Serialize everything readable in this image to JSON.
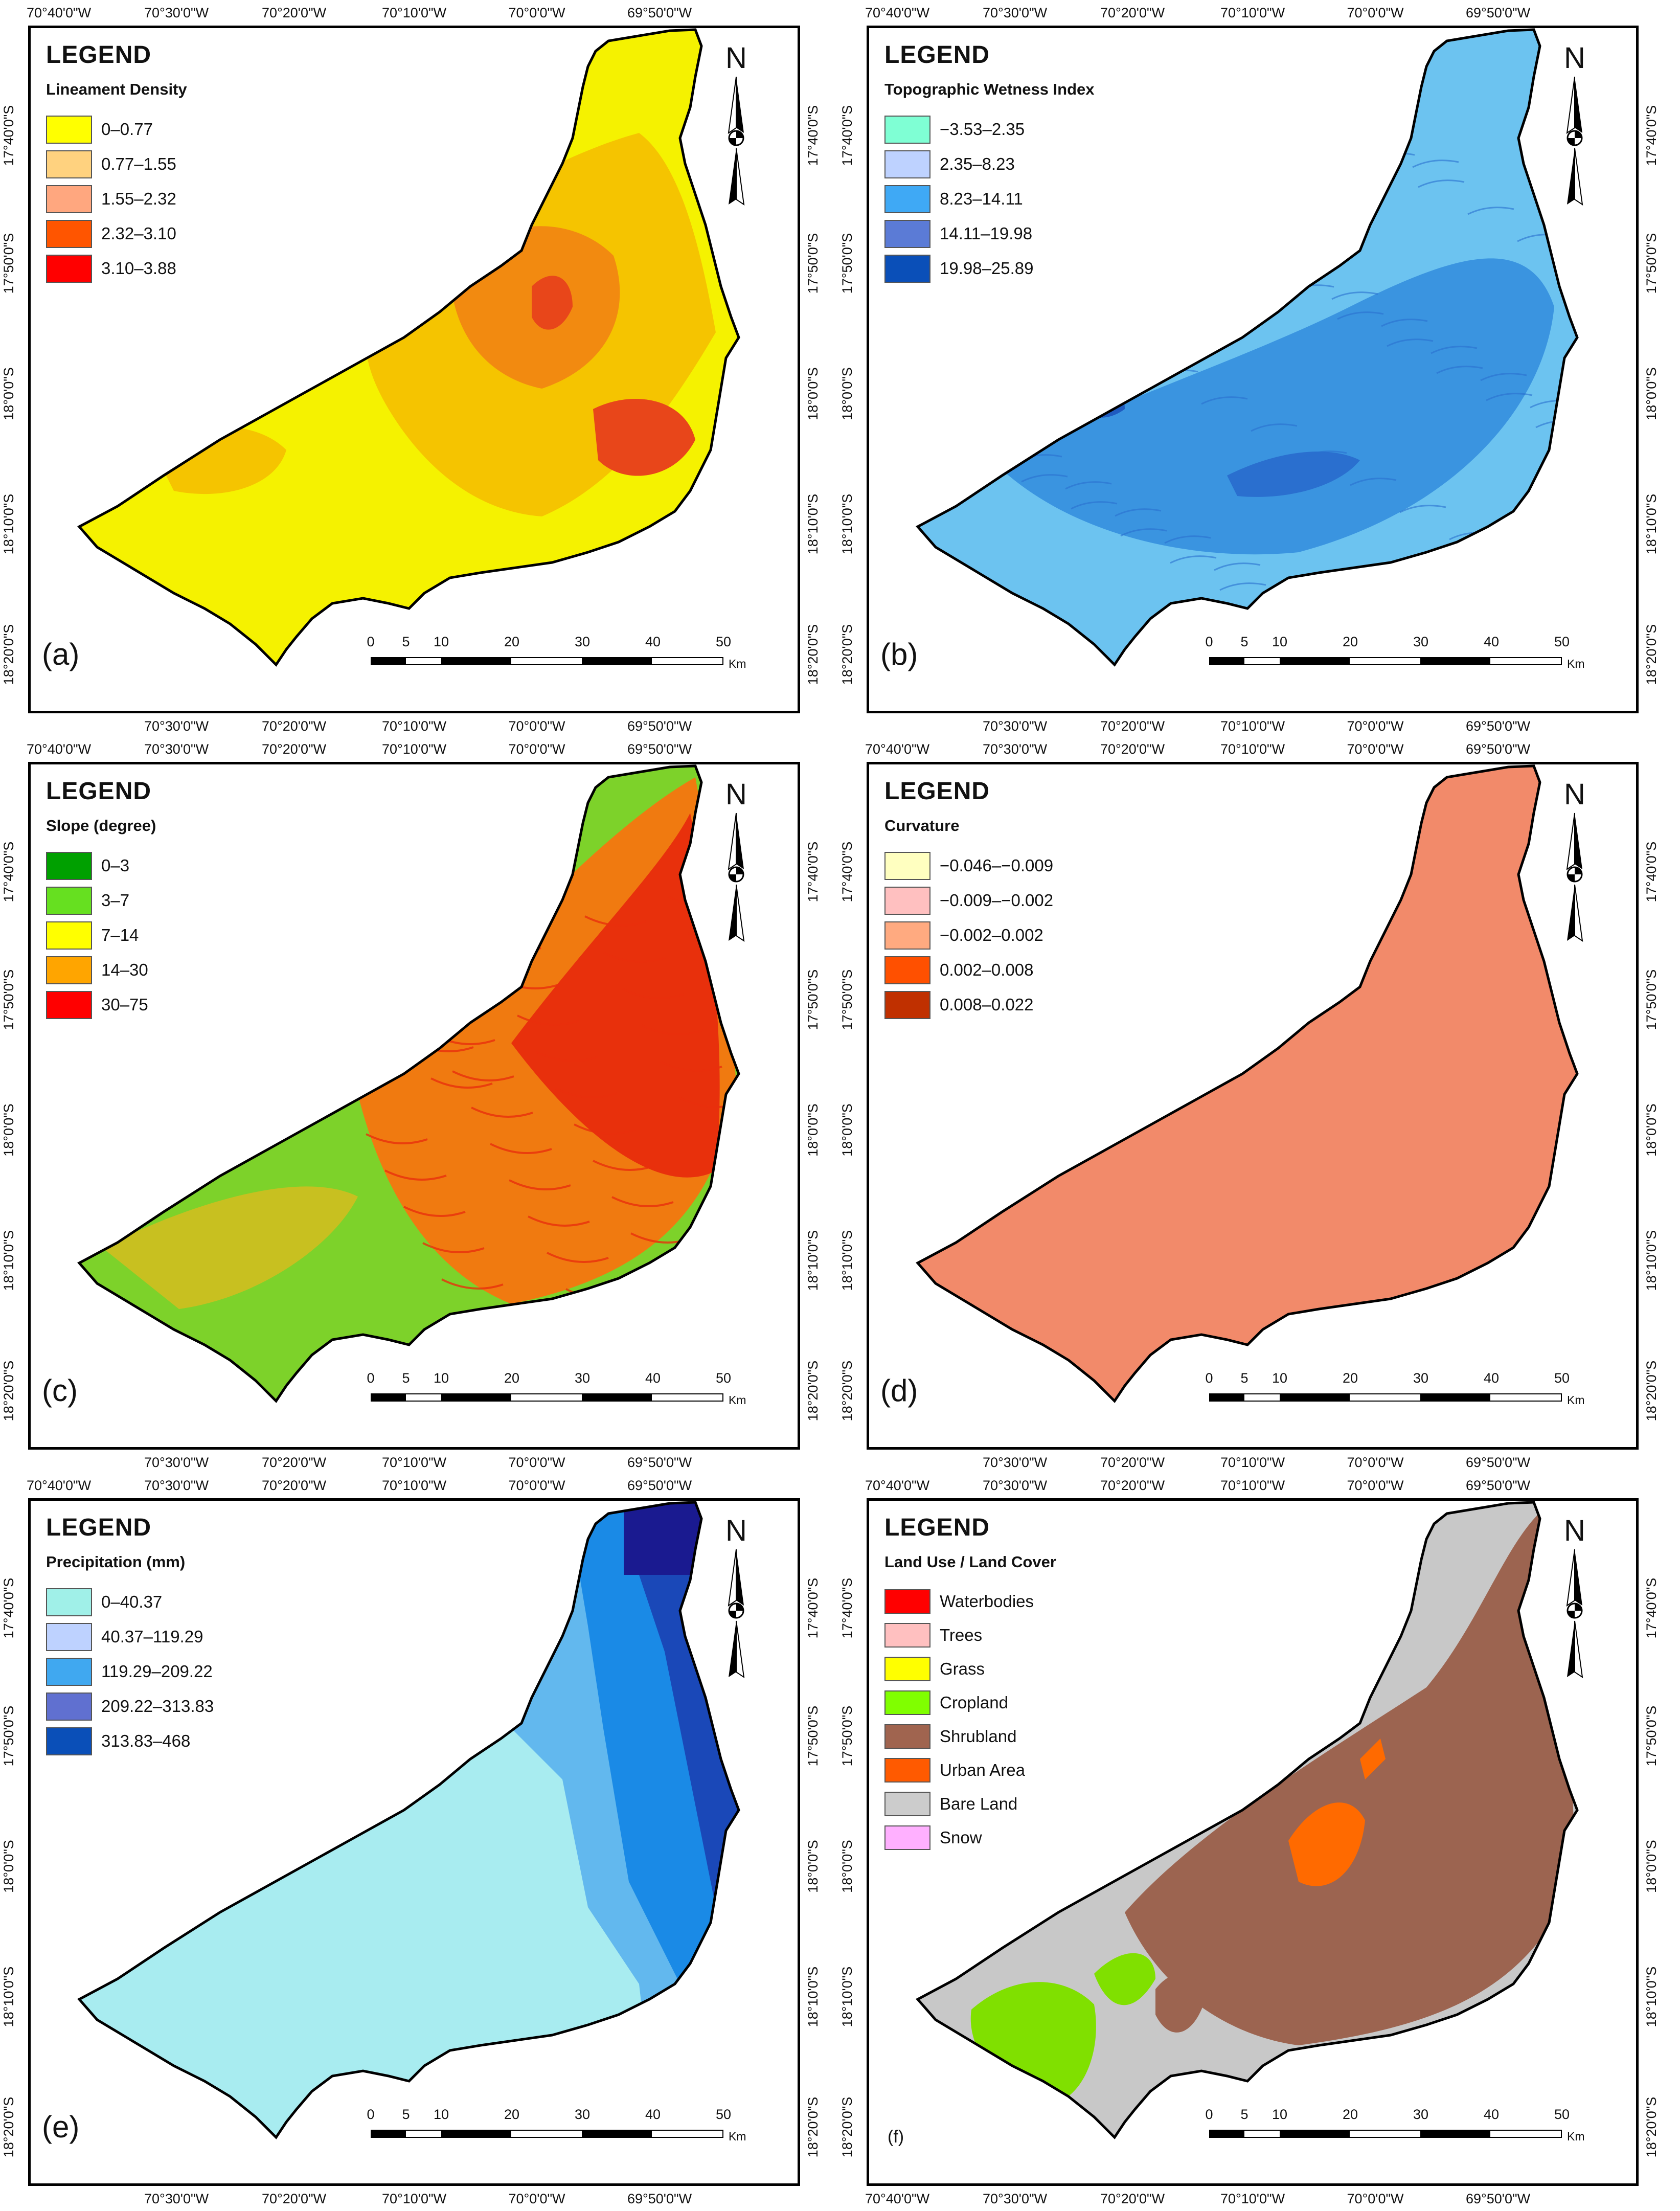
{
  "coords": {
    "top": [
      "70°40'0\"W",
      "70°30'0\"W",
      "70°20'0\"W",
      "70°10'0\"W",
      "70°0'0\"W",
      "69°50'0\"W"
    ],
    "bottom": [
      "70°30'0\"W",
      "70°20'0\"W",
      "70°10'0\"W",
      "70°0'0\"W",
      "69°50'0\"W"
    ],
    "bottom_f": [
      "70°40'0\"W",
      "70°30'0\"W",
      "70°20'0\"W",
      "70°10'0\"W",
      "70°0'0\"W",
      "69°50'0\"W"
    ],
    "left": [
      "17°40'0\"S",
      "17°50'0\"S",
      "18°0'0\"S",
      "18°10'0\"S",
      "18°20'0\"S"
    ],
    "right": [
      "17°40'0\"S",
      "17°50'0\"S",
      "18°0'0\"S",
      "18°10'0\"S",
      "18°20'0\"S"
    ]
  },
  "north_label": "N",
  "scale": {
    "ticks": [
      "0",
      "5",
      "10",
      "20",
      "30",
      "40",
      "50"
    ],
    "unit": "Km"
  },
  "legend_title": "LEGEND",
  "panels": [
    {
      "label": "(a)",
      "subtitle": "Lineament Density",
      "items": [
        {
          "label": "0–0.77",
          "color": "#ffff00"
        },
        {
          "label": "0.77–1.55",
          "color": "#ffd27f"
        },
        {
          "label": "1.55–2.32",
          "color": "#ffa77f"
        },
        {
          "label": "2.32–3.10",
          "color": "#ff5500"
        },
        {
          "label": "3.10–3.88",
          "color": "#ff0000"
        }
      ],
      "map_colors": {
        "base": "#f5f200",
        "mid": "#f5c400",
        "high": "#f28a10",
        "top": "#e8461a"
      }
    },
    {
      "label": "(b)",
      "subtitle": "Topographic Wetness Index",
      "items": [
        {
          "label": "−3.53–2.35",
          "color": "#7fffd4"
        },
        {
          "label": "2.35–8.23",
          "color": "#bed2ff"
        },
        {
          "label": "8.23–14.11",
          "color": "#3fa9f5"
        },
        {
          "label": "14.11–19.98",
          "color": "#5b7bd6"
        },
        {
          "label": "19.98–25.89",
          "color": "#0a4fb8"
        }
      ],
      "map_colors": {
        "base": "#6cc3f0",
        "mid": "#3a94e0",
        "high": "#2a6fcf",
        "top": "#1f5bc0"
      }
    },
    {
      "label": "(c)",
      "subtitle": "Slope (degree)",
      "items": [
        {
          "label": "0–3",
          "color": "#00a000"
        },
        {
          "label": "3–7",
          "color": "#66e020"
        },
        {
          "label": "7–14",
          "color": "#ffff00"
        },
        {
          "label": "14–30",
          "color": "#ffa500"
        },
        {
          "label": "30–75",
          "color": "#ff0000"
        }
      ],
      "map_colors": {
        "base": "#7dd22a",
        "mid": "#c8c020",
        "high": "#f07a10",
        "top": "#e8300c"
      }
    },
    {
      "label": "(d)",
      "subtitle": "Curvature",
      "items": [
        {
          "label": "−0.046–−0.009",
          "color": "#ffffc0"
        },
        {
          "label": "−0.009–−0.002",
          "color": "#ffc0c0"
        },
        {
          "label": "−0.002–0.002",
          "color": "#ffaa80"
        },
        {
          "label": "0.002–0.008",
          "color": "#ff5000"
        },
        {
          "label": "0.008–0.022",
          "color": "#c03000"
        }
      ],
      "map_colors": {
        "base": "#f28a6a",
        "mid": "#f28a6a",
        "high": "#f28a6a",
        "top": "#f28a6a"
      }
    },
    {
      "label": "(e)",
      "subtitle": "Precipitation (mm)",
      "items": [
        {
          "label": "0–40.37",
          "color": "#a0f0e8"
        },
        {
          "label": "40.37–119.29",
          "color": "#bed2ff"
        },
        {
          "label": "119.29–209.22",
          "color": "#40a8f0"
        },
        {
          "label": "209.22–313.83",
          "color": "#6070d0"
        },
        {
          "label": "313.83–468",
          "color": "#0a4fb8"
        }
      ],
      "map_colors": {
        "base": "#a8ecf0",
        "mid": "#62b8ee",
        "high": "#1a8ae6",
        "top": "#1a48b8",
        "peak": "#1a1a90"
      }
    },
    {
      "label": "(f)",
      "subtitle": "Land Use / Land Cover",
      "items": [
        {
          "label": "Waterbodies",
          "color": "#ff0000"
        },
        {
          "label": "Trees",
          "color": "#ffc0c0"
        },
        {
          "label": "Grass",
          "color": "#ffff00"
        },
        {
          "label": "Cropland",
          "color": "#80ff00"
        },
        {
          "label": "Shrubland",
          "color": "#a0644f"
        },
        {
          "label": "Urban Area",
          "color": "#ff5a00"
        },
        {
          "label": "Bare Land",
          "color": "#cccccc"
        },
        {
          "label": "Snow",
          "color": "#ffb0ff"
        }
      ],
      "map_colors": {
        "base": "#c8c8c8",
        "mid": "#9c6450",
        "high": "#ff6a00",
        "top": "#80e000"
      }
    }
  ]
}
